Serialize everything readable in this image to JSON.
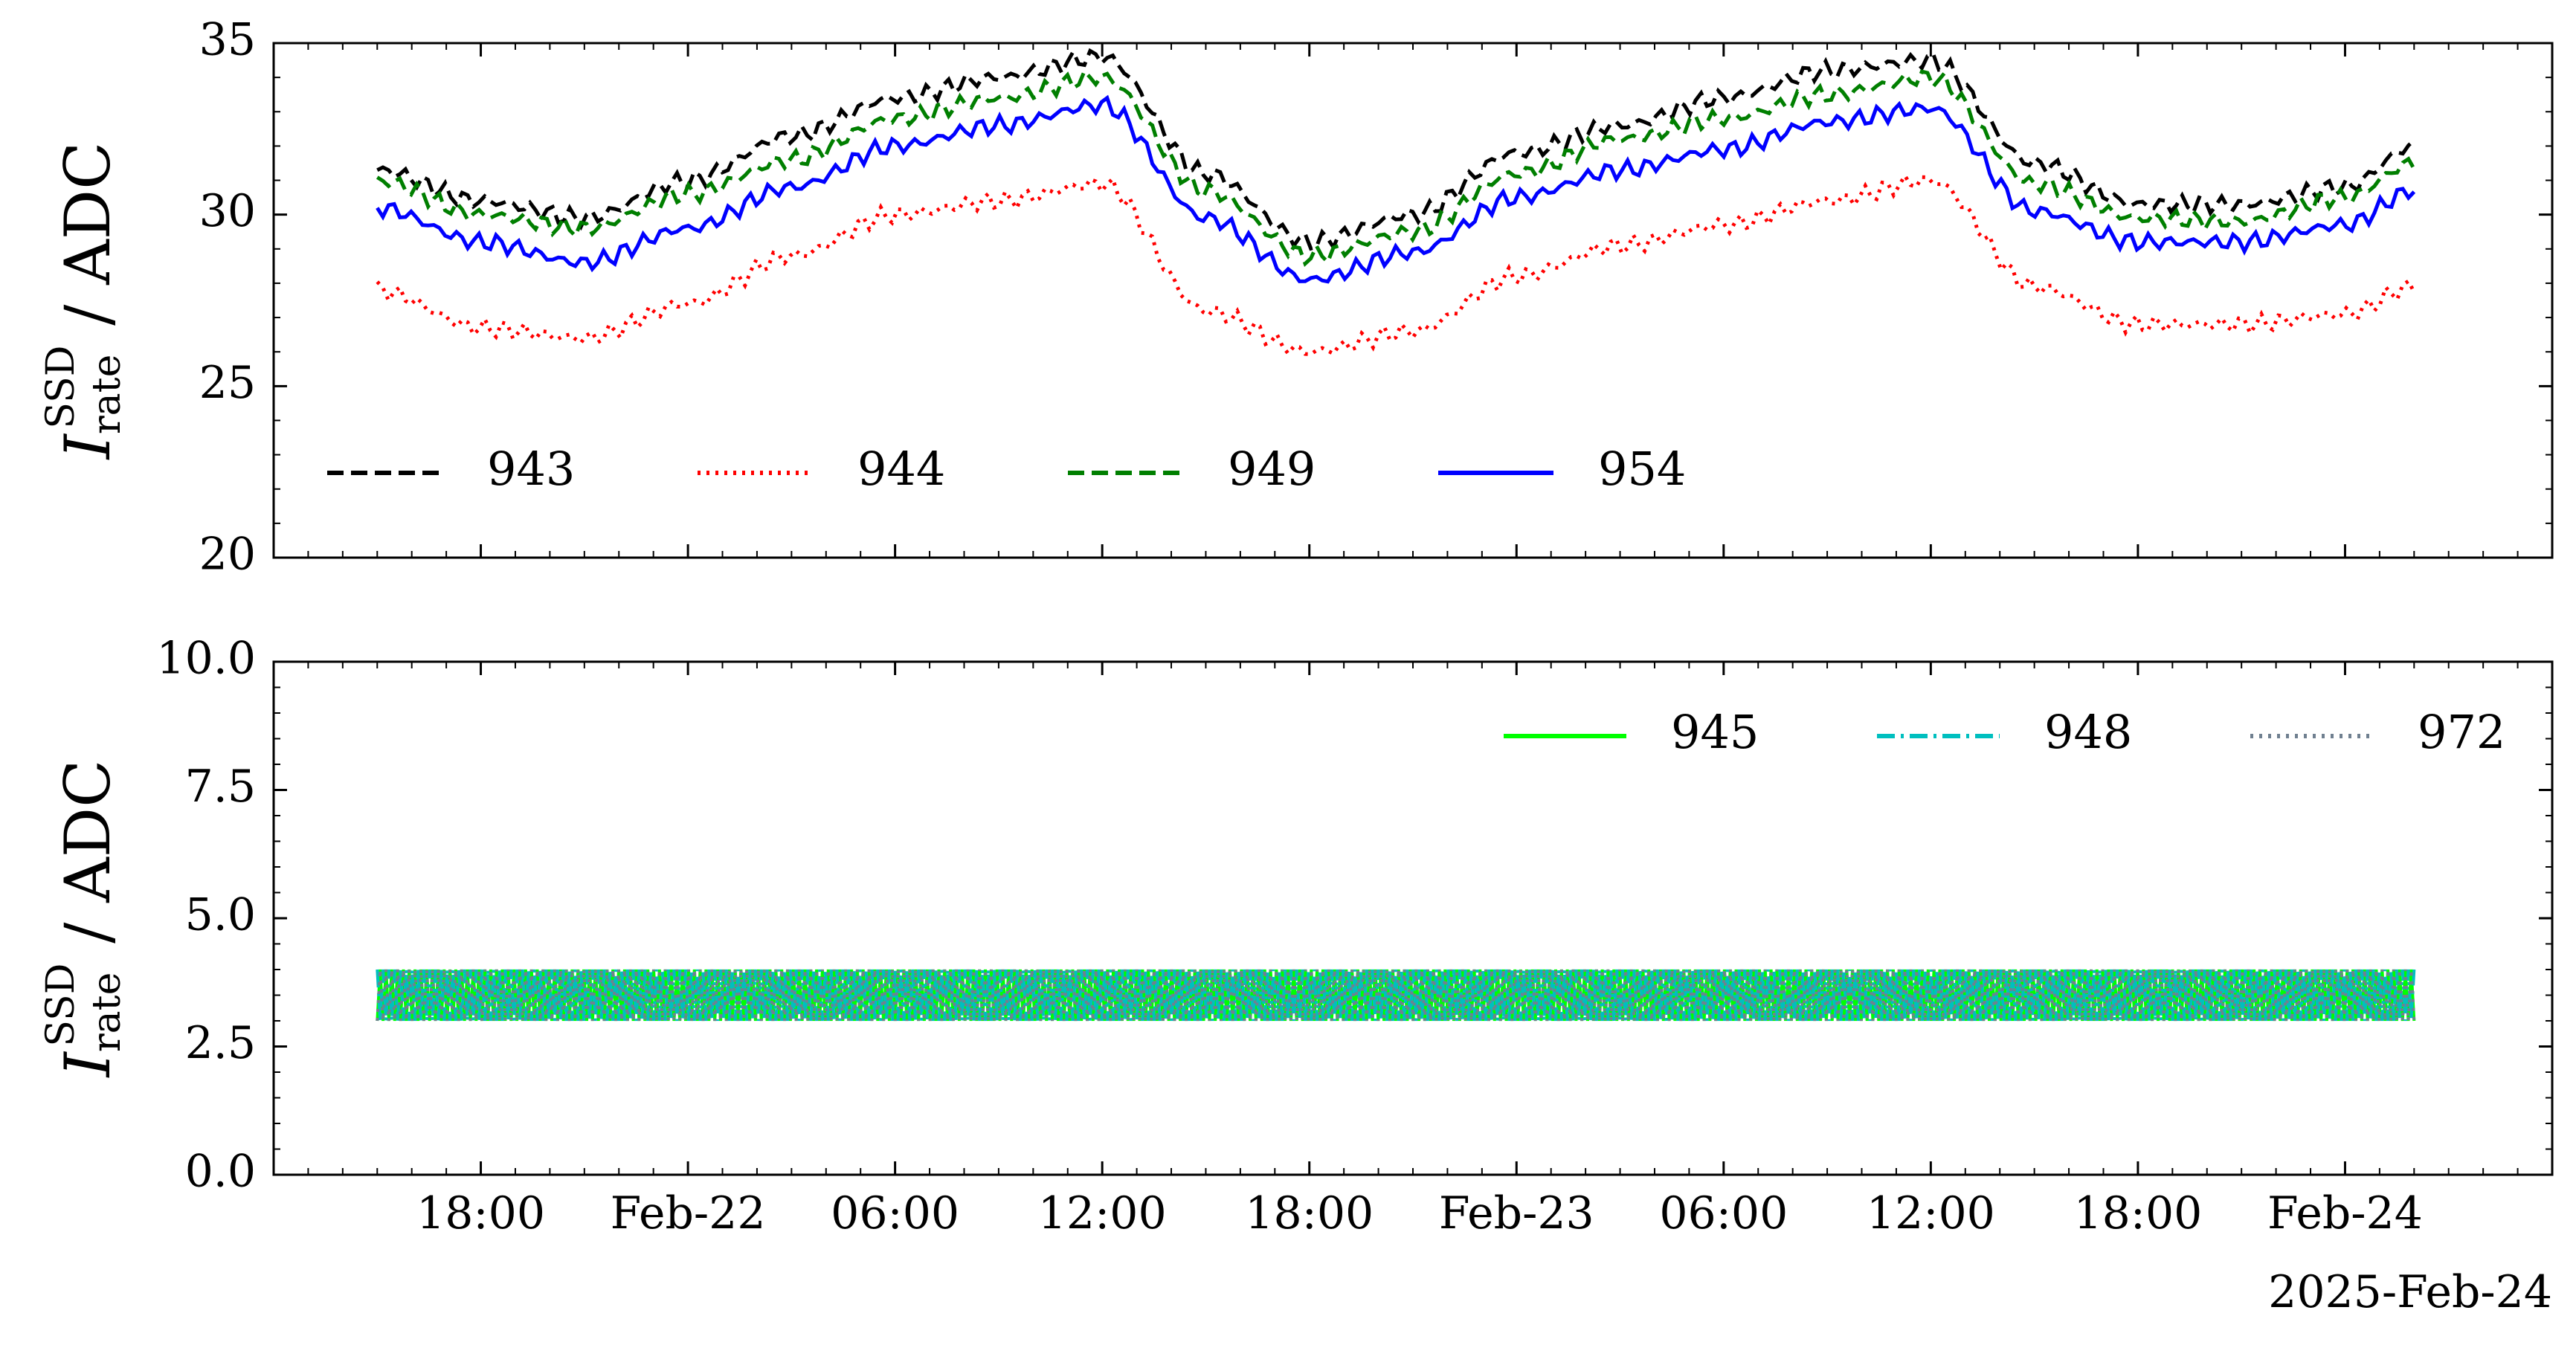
{
  "chart_data": [
    {
      "type": "line",
      "panel": "top",
      "ylabel": {
        "symbol": "I",
        "sub": "rate",
        "sup": "SSD",
        "unit": " / ADC"
      },
      "xlabel": "",
      "ylim": [
        20,
        35
      ],
      "yticks": [
        20,
        25,
        30,
        35
      ],
      "ytick_labels": [
        "20",
        "25",
        "30",
        "35"
      ],
      "xlim": [
        "2025-02-21T12:00",
        "2025-02-24T06:00"
      ],
      "xticks": [
        "2025-02-21T18:00",
        "2025-02-22T00:00",
        "2025-02-22T06:00",
        "2025-02-22T12:00",
        "2025-02-22T18:00",
        "2025-02-23T00:00",
        "2025-02-23T06:00",
        "2025-02-23T12:00",
        "2025-02-23T18:00",
        "2025-02-24T00:00"
      ],
      "xtick_labels": [
        "18:00",
        "Feb-22",
        "06:00",
        "12:00",
        "18:00",
        "Feb-23",
        "06:00",
        "12:00",
        "18:00",
        "Feb-24"
      ],
      "x_offset_label": "2025-Feb-24",
      "grid": false,
      "legend_placement": "lower-left",
      "legend_columns": 4,
      "x": [
        "2025-02-21T15:00",
        "2025-02-21T18:00",
        "2025-02-21T21:00",
        "2025-02-22T00:00",
        "2025-02-22T03:00",
        "2025-02-22T06:00",
        "2025-02-22T09:00",
        "2025-02-22T12:00",
        "2025-02-22T15:00",
        "2025-02-22T18:00",
        "2025-02-22T21:00",
        "2025-02-23T00:00",
        "2025-02-23T03:00",
        "2025-02-23T06:00",
        "2025-02-23T09:00",
        "2025-02-23T12:00",
        "2025-02-23T15:00",
        "2025-02-23T18:00",
        "2025-02-23T21:00",
        "2025-02-24T00:00",
        "2025-02-24T02:00"
      ],
      "series": [
        {
          "name": "943",
          "color": "#000000",
          "style": "dashed",
          "values": [
            31.3,
            30.4,
            29.9,
            31.0,
            32.3,
            33.4,
            34.0,
            34.6,
            31.2,
            29.2,
            30.0,
            31.8,
            32.6,
            33.4,
            34.2,
            34.5,
            31.5,
            30.3,
            30.3,
            30.8,
            32.0
          ]
        },
        {
          "name": "944",
          "color": "#ff0000",
          "style": "dotted",
          "values": [
            27.8,
            26.7,
            26.4,
            27.4,
            28.8,
            30.0,
            30.4,
            30.9,
            27.2,
            26.0,
            26.6,
            28.2,
            29.1,
            29.7,
            30.4,
            31.0,
            27.9,
            26.8,
            26.8,
            27.1,
            27.9
          ]
        },
        {
          "name": "949",
          "color": "#007f00",
          "style": "dashed",
          "values": [
            31.0,
            30.0,
            29.6,
            30.6,
            31.6,
            32.8,
            33.4,
            34.0,
            30.7,
            28.8,
            29.5,
            31.2,
            32.2,
            32.8,
            33.5,
            34.0,
            30.9,
            29.9,
            29.8,
            30.5,
            31.5
          ]
        },
        {
          "name": "954",
          "color": "#0000ff",
          "style": "solid",
          "values": [
            30.2,
            29.2,
            28.6,
            29.6,
            30.8,
            32.0,
            32.6,
            33.2,
            29.9,
            28.1,
            28.9,
            30.5,
            31.3,
            31.9,
            32.7,
            33.1,
            30.1,
            29.2,
            29.2,
            29.7,
            30.7
          ]
        }
      ]
    },
    {
      "type": "line",
      "panel": "bottom",
      "ylabel": {
        "symbol": "I",
        "sub": "rate",
        "sup": "SSD",
        "unit": " / ADC"
      },
      "xlabel": "",
      "ylim": [
        0,
        10
      ],
      "yticks": [
        0,
        2.5,
        5,
        7.5,
        10
      ],
      "ytick_labels": [
        "0.0",
        "2.5",
        "5.0",
        "7.5",
        "10.0"
      ],
      "xlim": [
        "2025-02-21T12:00",
        "2025-02-24T06:00"
      ],
      "xticks": [
        "2025-02-21T18:00",
        "2025-02-22T00:00",
        "2025-02-22T06:00",
        "2025-02-22T12:00",
        "2025-02-22T18:00",
        "2025-02-23T00:00",
        "2025-02-23T06:00",
        "2025-02-23T12:00",
        "2025-02-23T18:00",
        "2025-02-24T00:00"
      ],
      "xtick_labels": [
        "18:00",
        "Feb-22",
        "06:00",
        "12:00",
        "18:00",
        "Feb-23",
        "06:00",
        "12:00",
        "18:00",
        "Feb-24"
      ],
      "grid": false,
      "legend_placement": "upper-right",
      "legend_columns": 3,
      "x_range": [
        "2025-02-21T15:00",
        "2025-02-24T02:00"
      ],
      "series": [
        {
          "name": "945",
          "color": "#00ff00",
          "style": "solid",
          "value_range": [
            3.0,
            4.0
          ]
        },
        {
          "name": "948",
          "color": "#00bfbf",
          "style": "dashdot",
          "value_range": [
            3.0,
            4.0
          ]
        },
        {
          "name": "972",
          "color": "#708090",
          "style": "dotted",
          "value_range": [
            3.0,
            4.0
          ]
        }
      ]
    }
  ]
}
